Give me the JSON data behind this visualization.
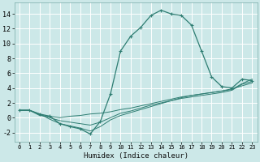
{
  "xlabel": "Humidex (Indice chaleur)",
  "ylabel": "",
  "xlim": [
    -0.5,
    23.5
  ],
  "ylim": [
    -3.2,
    15.5
  ],
  "background_color": "#cce8e8",
  "grid_color": "#ffffff",
  "line_color": "#2e7d72",
  "xticks": [
    0,
    1,
    2,
    3,
    4,
    5,
    6,
    7,
    8,
    9,
    10,
    11,
    12,
    13,
    14,
    15,
    16,
    17,
    18,
    19,
    20,
    21,
    22,
    23
  ],
  "yticks": [
    -2,
    0,
    2,
    4,
    6,
    8,
    10,
    12,
    14
  ],
  "main_x": [
    0,
    1,
    2,
    3,
    4,
    5,
    6,
    7,
    8,
    9,
    10,
    11,
    12,
    13,
    14,
    15,
    16,
    17,
    18,
    19,
    20,
    21,
    22,
    23
  ],
  "main_y": [
    1.0,
    1.0,
    0.5,
    0.2,
    -0.8,
    -1.2,
    -1.5,
    -2.2,
    -0.5,
    3.2,
    9.0,
    11.0,
    12.2,
    13.8,
    14.5,
    14.0,
    13.8,
    12.5,
    9.0,
    5.5,
    4.2,
    4.0,
    5.2,
    5.0
  ],
  "line2_x": [
    0,
    1,
    2,
    3,
    4,
    5,
    6,
    7,
    8,
    9,
    10,
    11,
    12,
    13,
    14,
    15,
    16,
    17,
    18,
    19,
    20,
    21,
    22,
    23
  ],
  "line2_y": [
    1.0,
    1.0,
    0.5,
    -0.2,
    -0.8,
    -1.1,
    -1.4,
    -1.8,
    -1.2,
    -0.3,
    0.3,
    0.7,
    1.1,
    1.5,
    1.9,
    2.3,
    2.7,
    3.0,
    3.2,
    3.4,
    3.6,
    3.9,
    4.3,
    4.7
  ],
  "line3_x": [
    0,
    1,
    2,
    3,
    4,
    5,
    6,
    7,
    8,
    9,
    10,
    11,
    12,
    13,
    14,
    15,
    16,
    17,
    18,
    19,
    20,
    21,
    22,
    23
  ],
  "line3_y": [
    1.0,
    1.0,
    0.4,
    0.0,
    -0.4,
    -0.6,
    -0.8,
    -1.0,
    -0.6,
    0.0,
    0.6,
    0.9,
    1.3,
    1.7,
    2.0,
    2.3,
    2.6,
    2.8,
    3.0,
    3.2,
    3.4,
    3.7,
    4.5,
    4.9
  ],
  "line4_x": [
    0,
    1,
    2,
    3,
    4,
    5,
    6,
    7,
    8,
    9,
    10,
    11,
    12,
    13,
    14,
    15,
    16,
    17,
    18,
    19,
    20,
    21,
    22,
    23
  ],
  "line4_y": [
    1.0,
    1.0,
    0.3,
    0.2,
    0.0,
    0.2,
    0.3,
    0.5,
    0.6,
    0.8,
    1.1,
    1.3,
    1.6,
    1.9,
    2.2,
    2.5,
    2.8,
    3.0,
    3.2,
    3.4,
    3.6,
    3.8,
    4.6,
    5.2
  ]
}
